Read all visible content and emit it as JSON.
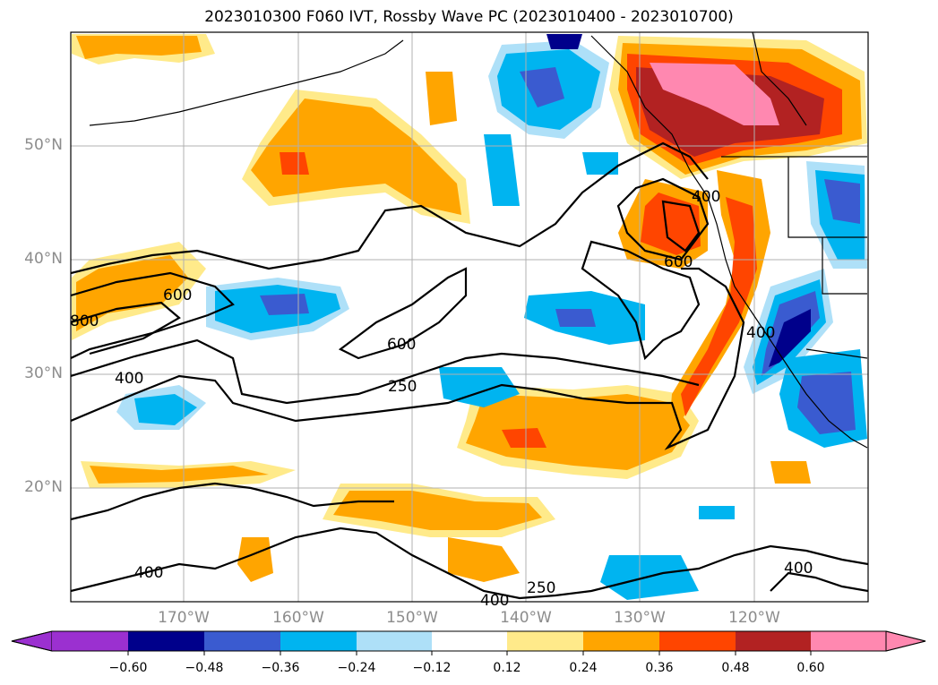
{
  "title": "2023010300 F060 IVT, Rossby Wave PC (2023010400 - 2023010700)",
  "lat_labels": [
    "50°N",
    "40°N",
    "30°N",
    "20°N"
  ],
  "lon_labels": [
    "170°W",
    "160°W",
    "150°W",
    "140°W",
    "130°W",
    "120°W"
  ],
  "contour_labels": [
    "600",
    "800",
    "400",
    "600",
    "250",
    "400",
    "600",
    "400",
    "250",
    "400",
    "400",
    "400"
  ],
  "colorbar": {
    "ticks": [
      "−0.60",
      "−0.48",
      "−0.36",
      "−0.24",
      "−0.12",
      "0.12",
      "0.24",
      "0.36",
      "0.48",
      "0.60"
    ],
    "colors": [
      "#9b30d0",
      "#00008b",
      "#3a5bd0",
      "#00b4f0",
      "#aee0f8",
      "#ffffff",
      "#ffea8a",
      "#ffa500",
      "#ff4500",
      "#b22222",
      "#ff88b0"
    ]
  },
  "colors": {
    "pos_low": "#ffea8a",
    "pos_mid": "#ffa500",
    "pos_high": "#ff4500",
    "pos_vhigh": "#b22222",
    "pos_max": "#ff88b0",
    "neg_low": "#aee0f8",
    "neg_mid": "#00b4f0",
    "neg_high": "#3a5bd0",
    "neg_vhigh": "#00008b"
  }
}
